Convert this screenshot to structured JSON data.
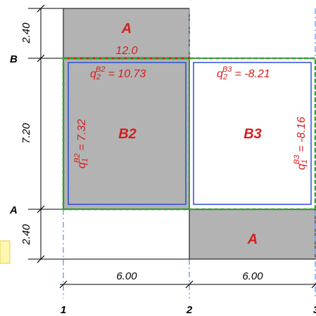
{
  "colors": {
    "slab_fill": "#b3b3b3",
    "edge_red": "#d41f1f",
    "panel_blue": "#2b4fd1",
    "region_green": "#2da52d",
    "line_black": "#000000",
    "axis_blue": "#3d6fd8",
    "note_yellow": "#fff6b0"
  },
  "axes": {
    "vertical": [
      "1",
      "2",
      "3"
    ],
    "horizontal": [
      "B",
      "A"
    ]
  },
  "dimensions": {
    "left": [
      "2.40",
      "7.20",
      "2.40"
    ],
    "bottom": [
      "6.00",
      "6.00"
    ]
  },
  "regions": {
    "top_slab": {
      "label": "A"
    },
    "bottom_slab": {
      "label": "A"
    },
    "edge_load": "12.0",
    "b2": {
      "label": "B2",
      "q2": {
        "symbol": "q",
        "sub": "2",
        "sup": "B2",
        "value": "= 10.73"
      },
      "q1": {
        "symbol": "q",
        "sub": "1",
        "sup": "B2",
        "value": "= 7.32"
      }
    },
    "b3": {
      "label": "B3",
      "q2": {
        "symbol": "q",
        "sub": "2",
        "sup": "B3",
        "value": "= -8.21"
      },
      "q1": {
        "symbol": "q",
        "sub": "1",
        "sup": "B3",
        "value": "= -8.16"
      }
    }
  }
}
